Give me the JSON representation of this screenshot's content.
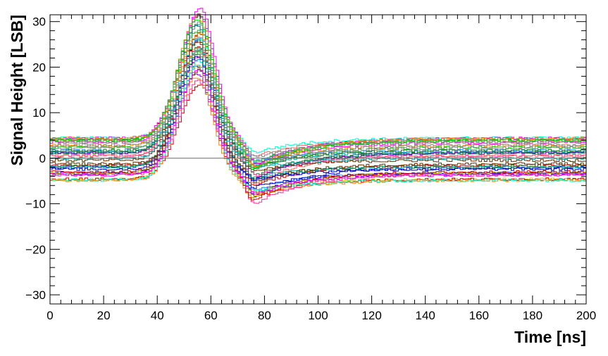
{
  "chart_data": {
    "type": "line",
    "title": "",
    "xlabel": "Time [ns]",
    "ylabel": "Signal Height [LSB]",
    "xlim": [
      0,
      200
    ],
    "ylim": [
      -32,
      31.5
    ],
    "xticks": [
      0,
      20,
      40,
      60,
      80,
      100,
      120,
      140,
      160,
      180,
      200
    ],
    "yticks": [
      -30,
      -20,
      -10,
      0,
      10,
      20,
      30
    ],
    "grid": false,
    "legend": "none",
    "step": true,
    "zero_line": true,
    "pulse_shape": {
      "onset_ns": 36,
      "peak_ns": 55,
      "zero_cross_ns": 70,
      "undershoot_ns": 76,
      "recovery_ns": 95,
      "peak_amplitude_range": [
        20,
        29
      ],
      "undershoot_depth_range": [
        -1,
        -3
      ],
      "baseline_range": [
        -5,
        4.5
      ]
    },
    "series_count": 40,
    "palette": [
      "#1f7a1f",
      "#0000cc",
      "#cc0000",
      "#ff00ff",
      "#00aaaa",
      "#ff8800",
      "#888888",
      "#00cc00",
      "#9900cc",
      "#ff3399",
      "#006666",
      "#cccc00",
      "#ff6666",
      "#3399ff",
      "#663300",
      "#00ffcc"
    ]
  }
}
